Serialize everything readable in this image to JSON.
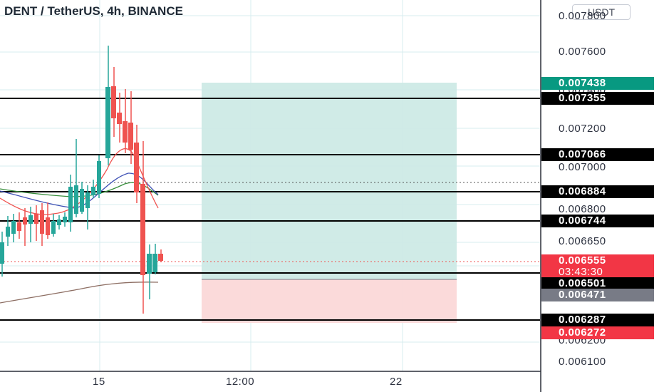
{
  "header": {
    "symbol_title": "DENT / TetherUS, 4h, BINANCE",
    "currency_button": "USDT"
  },
  "price_axis": {
    "ticks": [
      "0.007800",
      "0.007600",
      "0.007400",
      "0.007200",
      "0.007000",
      "0.006800",
      "0.006650",
      "0.006200",
      "0.006100"
    ]
  },
  "price_tags": [
    {
      "label": "0.007438",
      "color": "#089981",
      "name": "take-profit-tag"
    },
    {
      "label": "0.007355",
      "color": "#000000",
      "name": "level-tag-0-007355"
    },
    {
      "label": "0.007066",
      "color": "#000000",
      "name": "level-tag-0-007066"
    },
    {
      "label": "0.006884",
      "color": "#000000",
      "name": "level-tag-0-006884"
    },
    {
      "label": "0.006744",
      "color": "#000000",
      "name": "level-tag-0-006744"
    },
    {
      "label": "0.006555",
      "sublabel": "03:43:30",
      "color": "#f23645",
      "name": "last-price-tag"
    },
    {
      "label": "0.006501",
      "color": "#000000",
      "name": "level-tag-0-006501"
    },
    {
      "label": "0.006471",
      "color": "#787b86",
      "name": "entry-price-tag"
    },
    {
      "label": "0.006287",
      "color": "#000000",
      "name": "level-tag-0-006287"
    },
    {
      "label": "0.006272",
      "color": "#f23645",
      "name": "stop-loss-tag"
    }
  ],
  "time_axis": {
    "ticks": [
      "15",
      "12:00",
      "22"
    ]
  },
  "colors": {
    "up": "#26a69a",
    "down": "#ef5350",
    "target_zone": "#cdeae6",
    "stop_zone": "#fbd8d8",
    "grid": "#d7ecef"
  }
}
